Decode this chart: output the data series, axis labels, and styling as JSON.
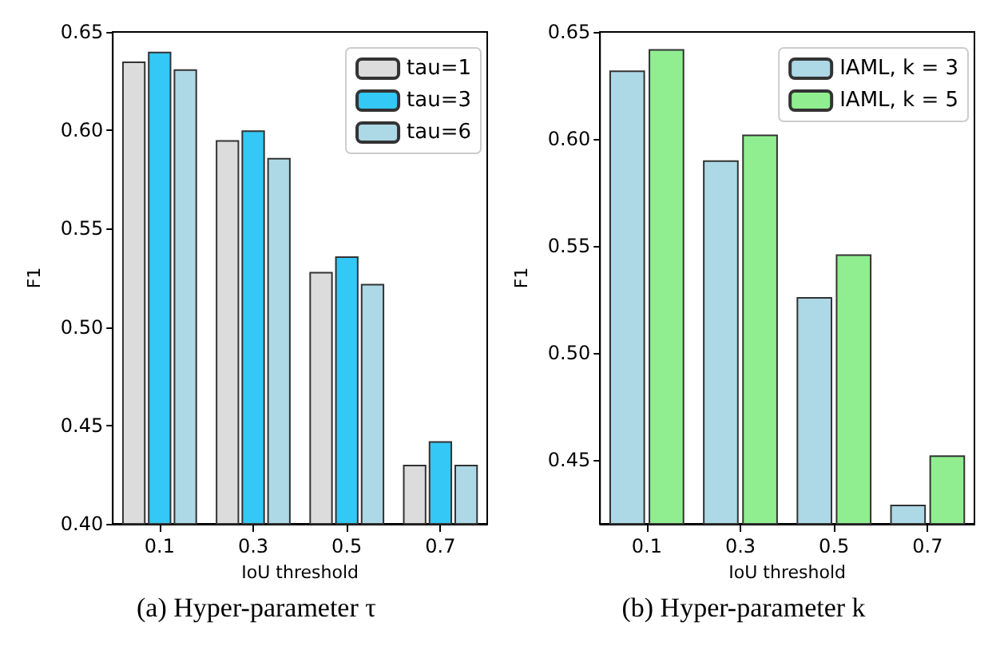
{
  "chart_data": [
    {
      "type": "bar",
      "title": "(a) Hyper-parameter τ",
      "xlabel": "IoU threshold",
      "ylabel": "F1",
      "categories": [
        "0.1",
        "0.3",
        "0.5",
        "0.7"
      ],
      "series": [
        {
          "name": "tau=1",
          "color": "#dcdcdc",
          "values": [
            0.635,
            0.595,
            0.528,
            0.43
          ]
        },
        {
          "name": "tau=3",
          "color": "#33c8f5",
          "values": [
            0.64,
            0.6,
            0.536,
            0.442
          ]
        },
        {
          "name": "tau=6",
          "color": "#add8e6",
          "values": [
            0.631,
            0.586,
            0.522,
            0.43
          ]
        }
      ],
      "ylim": [
        0.4,
        0.65
      ],
      "yticks": [
        {
          "value": 0.4,
          "label": "0.40"
        },
        0.45,
        {
          "value": 0.5,
          "label": "0.50"
        },
        0.55,
        {
          "value": 0.6,
          "label": "0.60"
        },
        0.65
      ],
      "grid": false,
      "legend": "top right"
    },
    {
      "type": "bar",
      "title": "(b) Hyper-parameter k",
      "xlabel": "IoU threshold",
      "ylabel": "F1",
      "categories": [
        "0.1",
        "0.3",
        "0.5",
        "0.7"
      ],
      "series": [
        {
          "name": "IAML, k = 3",
          "color": "#add8e6",
          "values": [
            0.632,
            0.59,
            0.526,
            0.429
          ]
        },
        {
          "name": "IAML, k = 5",
          "color": "#90ee90",
          "values": [
            0.642,
            0.602,
            0.546,
            0.452
          ]
        }
      ],
      "ylim": [
        0.42,
        0.65
      ],
      "yticks": [
        0.45,
        {
          "value": 0.5,
          "label": "0.50"
        },
        0.55,
        {
          "value": 0.6,
          "label": "0.60"
        },
        0.65
      ],
      "grid": false,
      "legend": "top right"
    }
  ]
}
